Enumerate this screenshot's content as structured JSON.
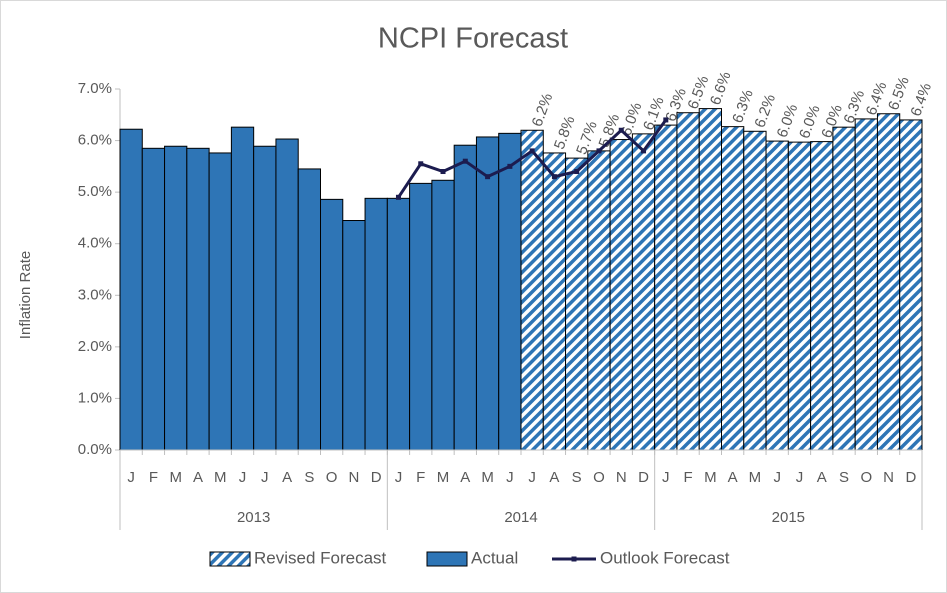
{
  "chart_data": {
    "type": "bar",
    "title": "NCPI Forecast",
    "y_label": "Inflation Rate",
    "categories": [
      "J",
      "F",
      "M",
      "A",
      "M",
      "J",
      "J",
      "A",
      "S",
      "O",
      "N",
      "D",
      "J",
      "F",
      "M",
      "A",
      "M",
      "J",
      "J",
      "A",
      "S",
      "O",
      "N",
      "D",
      "J",
      "F",
      "M",
      "A",
      "M",
      "J",
      "J",
      "A",
      "S",
      "O",
      "N",
      "D"
    ],
    "groups": [
      "2013",
      "2014",
      "2015"
    ],
    "ylim": [
      0,
      7
    ],
    "yticks": [
      {
        "value": 0,
        "label": "0.0%"
      },
      {
        "value": 1,
        "label": "1.0%"
      },
      {
        "value": 2,
        "label": "2.0%"
      },
      {
        "value": 3,
        "label": "3.0%"
      },
      {
        "value": 4,
        "label": "4.0%"
      },
      {
        "value": 5,
        "label": "5.0%"
      },
      {
        "value": 6,
        "label": "6.0%"
      },
      {
        "value": 7,
        "label": "7.0%"
      }
    ],
    "series": [
      {
        "name": "Revised Forecast",
        "kind": "bar",
        "color": "#2e75b6",
        "pattern": "hatched",
        "values": [
          null,
          null,
          null,
          null,
          null,
          null,
          null,
          null,
          null,
          null,
          null,
          null,
          null,
          null,
          null,
          null,
          null,
          null,
          6.2,
          5.76,
          5.66,
          5.8,
          6.02,
          6.13,
          6.3,
          6.54,
          6.62,
          6.27,
          6.18,
          5.99,
          5.97,
          5.98,
          6.26,
          6.42,
          6.52,
          6.4
        ],
        "value_labels": [
          null,
          null,
          null,
          null,
          null,
          null,
          null,
          null,
          null,
          null,
          null,
          null,
          null,
          null,
          null,
          null,
          null,
          null,
          "6.2%",
          "5.8%",
          "5.7%",
          "5.8%",
          "6.0%",
          "6.1%",
          "6.3%",
          "6.5%",
          "6.6%",
          "6.3%",
          "6.2%",
          "6.0%",
          "6.0%",
          "6.0%",
          "6.3%",
          "6.4%",
          "6.5%",
          "6.4%"
        ]
      },
      {
        "name": "Actual",
        "kind": "bar",
        "color": "#2e75b6",
        "values": [
          6.22,
          5.85,
          5.89,
          5.85,
          5.76,
          6.26,
          5.89,
          6.03,
          5.45,
          4.86,
          4.45,
          4.88,
          4.88,
          5.17,
          5.23,
          5.91,
          6.07,
          6.14,
          null,
          null,
          null,
          null,
          null,
          null,
          null,
          null,
          null,
          null,
          null,
          null,
          null,
          null,
          null,
          null,
          null,
          null
        ]
      },
      {
        "name": "Outlook Forecast",
        "kind": "line",
        "color": "#1c1c4f",
        "values": [
          null,
          null,
          null,
          null,
          null,
          null,
          null,
          null,
          null,
          null,
          null,
          null,
          4.9,
          5.55,
          5.4,
          5.6,
          5.3,
          5.5,
          5.8,
          5.3,
          5.4,
          5.8,
          6.2,
          5.8,
          6.4,
          null,
          null,
          null,
          null,
          null,
          null,
          null,
          null,
          null,
          null,
          null
        ]
      }
    ]
  }
}
